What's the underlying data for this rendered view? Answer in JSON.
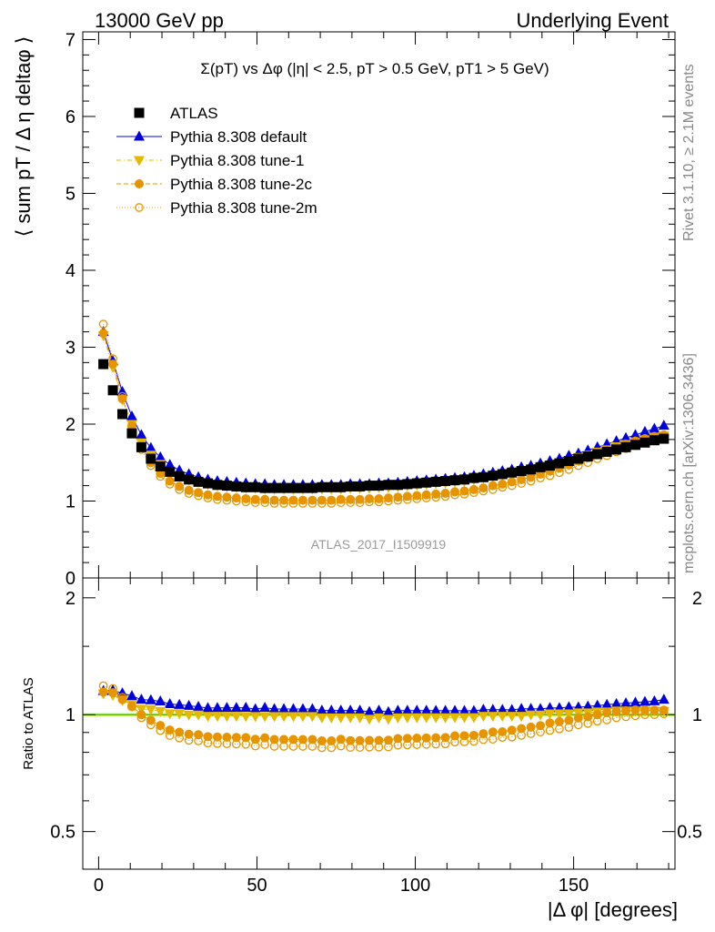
{
  "header": {
    "left": "13000 GeV pp",
    "right": "Underlying Event"
  },
  "side_labels": {
    "rivet": "Rivet 3.1.10, ≥ 2.1M events",
    "mcplots": "mcplots.cern.ch [arXiv:1306.3436]"
  },
  "colors": {
    "atlas": "#000000",
    "default": "#0000dd",
    "tune1": "#e6b800",
    "tune2c": "#e69500",
    "tune2m": "#e69500",
    "band": "#ccff66",
    "ref_line": "#33aa33"
  },
  "chart_data": {
    "type": "scatter",
    "title": "Σ(pT) vs Δφ (|η| < 2.5, pT > 0.5 GeV, pT1 > 5 GeV)",
    "watermark": "ATLAS_2017_I1509919",
    "xlabel": "|Δ φ| [degrees]",
    "ylabel": "⟨ sum pT / Δ η deltaφ ⟩",
    "ratio_ylabel": "Ratio to ATLAS",
    "xlim": [
      -5,
      182
    ],
    "ylim": [
      0,
      7.1
    ],
    "ratio_ylim": [
      0.4,
      2.25
    ],
    "ratio_log": true,
    "xticks": [
      "0",
      "50",
      "100",
      "150"
    ],
    "yticks": [
      "0",
      "1",
      "2",
      "3",
      "4",
      "5",
      "6",
      "7"
    ],
    "ratio_yticks": [
      "0.5",
      "1",
      "2"
    ],
    "legend": [
      "ATLAS",
      "Pythia 8.308 default",
      "Pythia 8.308 tune-1",
      "Pythia 8.308 tune-2c",
      "Pythia 8.308 tune-2m"
    ],
    "x": [
      1.5,
      4.5,
      7.5,
      10.5,
      13.5,
      16.5,
      19.5,
      22.5,
      25.5,
      28.5,
      31.5,
      34.5,
      37.5,
      40.5,
      43.5,
      46.5,
      49.5,
      52.5,
      55.5,
      58.5,
      61.5,
      64.5,
      67.5,
      70.5,
      73.5,
      76.5,
      79.5,
      82.5,
      85.5,
      88.5,
      91.5,
      94.5,
      97.5,
      100.5,
      103.5,
      106.5,
      109.5,
      112.5,
      115.5,
      118.5,
      121.5,
      124.5,
      127.5,
      130.5,
      133.5,
      136.5,
      139.5,
      142.5,
      145.5,
      148.5,
      151.5,
      154.5,
      157.5,
      160.5,
      163.5,
      166.5,
      169.5,
      172.5,
      175.5,
      178.5
    ],
    "series": [
      {
        "name": "ATLAS",
        "values": [
          2.78,
          2.44,
          2.13,
          1.88,
          1.7,
          1.55,
          1.45,
          1.38,
          1.32,
          1.28,
          1.25,
          1.23,
          1.21,
          1.2,
          1.19,
          1.18,
          1.18,
          1.17,
          1.17,
          1.17,
          1.17,
          1.17,
          1.17,
          1.18,
          1.18,
          1.18,
          1.19,
          1.19,
          1.2,
          1.2,
          1.21,
          1.21,
          1.22,
          1.23,
          1.24,
          1.25,
          1.26,
          1.27,
          1.28,
          1.3,
          1.31,
          1.33,
          1.35,
          1.37,
          1.39,
          1.41,
          1.44,
          1.46,
          1.49,
          1.52,
          1.55,
          1.58,
          1.61,
          1.64,
          1.67,
          1.7,
          1.73,
          1.76,
          1.79,
          1.81
        ]
      },
      {
        "name": "Pythia 8.308 default",
        "values": [
          3.2,
          2.82,
          2.42,
          2.1,
          1.86,
          1.69,
          1.57,
          1.47,
          1.4,
          1.35,
          1.31,
          1.28,
          1.26,
          1.25,
          1.24,
          1.23,
          1.22,
          1.22,
          1.21,
          1.21,
          1.21,
          1.21,
          1.21,
          1.21,
          1.21,
          1.21,
          1.22,
          1.22,
          1.22,
          1.23,
          1.23,
          1.24,
          1.25,
          1.26,
          1.27,
          1.28,
          1.29,
          1.3,
          1.31,
          1.33,
          1.35,
          1.37,
          1.39,
          1.41,
          1.44,
          1.46,
          1.49,
          1.52,
          1.55,
          1.59,
          1.62,
          1.66,
          1.7,
          1.74,
          1.78,
          1.82,
          1.86,
          1.9,
          1.94,
          1.98
        ]
      },
      {
        "name": "Pythia 8.308 tune-1",
        "values": [
          3.15,
          2.74,
          2.32,
          2.0,
          1.76,
          1.6,
          1.48,
          1.39,
          1.33,
          1.28,
          1.25,
          1.22,
          1.2,
          1.19,
          1.18,
          1.17,
          1.17,
          1.16,
          1.16,
          1.16,
          1.16,
          1.16,
          1.16,
          1.16,
          1.16,
          1.16,
          1.17,
          1.17,
          1.17,
          1.18,
          1.18,
          1.19,
          1.2,
          1.21,
          1.22,
          1.23,
          1.24,
          1.25,
          1.26,
          1.28,
          1.3,
          1.32,
          1.34,
          1.36,
          1.38,
          1.41,
          1.44,
          1.47,
          1.5,
          1.53,
          1.57,
          1.6,
          1.64,
          1.67,
          1.71,
          1.74,
          1.77,
          1.8,
          1.83,
          1.85
        ]
      },
      {
        "name": "Pythia 8.308 tune-2c",
        "values": [
          3.18,
          2.78,
          2.33,
          1.98,
          1.7,
          1.5,
          1.36,
          1.26,
          1.19,
          1.14,
          1.11,
          1.08,
          1.06,
          1.05,
          1.04,
          1.03,
          1.02,
          1.02,
          1.01,
          1.01,
          1.01,
          1.01,
          1.01,
          1.01,
          1.01,
          1.02,
          1.02,
          1.02,
          1.03,
          1.03,
          1.04,
          1.05,
          1.06,
          1.07,
          1.08,
          1.09,
          1.1,
          1.12,
          1.13,
          1.15,
          1.17,
          1.2,
          1.22,
          1.25,
          1.28,
          1.31,
          1.35,
          1.39,
          1.43,
          1.47,
          1.52,
          1.56,
          1.61,
          1.66,
          1.7,
          1.74,
          1.78,
          1.81,
          1.84,
          1.86
        ]
      },
      {
        "name": "Pythia 8.308 tune-2m",
        "values": [
          3.3,
          2.85,
          2.36,
          1.97,
          1.67,
          1.46,
          1.32,
          1.22,
          1.15,
          1.1,
          1.07,
          1.04,
          1.02,
          1.01,
          1.0,
          0.99,
          0.98,
          0.98,
          0.97,
          0.97,
          0.97,
          0.97,
          0.97,
          0.97,
          0.97,
          0.98,
          0.98,
          0.98,
          0.99,
          0.99,
          1.0,
          1.01,
          1.02,
          1.03,
          1.04,
          1.05,
          1.06,
          1.08,
          1.09,
          1.11,
          1.13,
          1.15,
          1.18,
          1.2,
          1.23,
          1.26,
          1.3,
          1.33,
          1.37,
          1.41,
          1.46,
          1.5,
          1.55,
          1.59,
          1.64,
          1.68,
          1.72,
          1.76,
          1.79,
          1.82
        ]
      }
    ]
  }
}
